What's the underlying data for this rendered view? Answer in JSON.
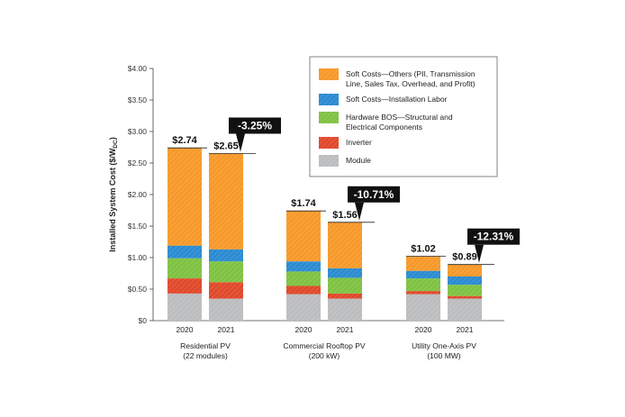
{
  "chart_data": {
    "type": "bar",
    "stacked": true,
    "ylabel": "Installed System Cost ($/W",
    "ylabel_subscript": "DC",
    "ylabel_suffix": ")",
    "ylim": [
      0,
      4.0
    ],
    "yticks": [
      "$0",
      "$0.50",
      "$1.00",
      "$1.50",
      "$2.00",
      "$2.50",
      "$3.00",
      "$3.50",
      "$4.00"
    ],
    "ytick_values": [
      0,
      0.5,
      1.0,
      1.5,
      2.0,
      2.5,
      3.0,
      3.5,
      4.0
    ],
    "grid": false,
    "legend_position": "top-right",
    "groups": [
      {
        "label_line1": "Residential PV",
        "label_line2": "(22 modules)",
        "change_label": "-3.25%",
        "bars": [
          {
            "year": "2020",
            "total": 2.74,
            "total_label": "$2.74",
            "segments": [
              0.43,
              0.24,
              0.32,
              0.2,
              1.55
            ]
          },
          {
            "year": "2021",
            "total": 2.65,
            "total_label": "$2.65",
            "segments": [
              0.35,
              0.26,
              0.33,
              0.19,
              1.52
            ]
          }
        ]
      },
      {
        "label_line1": "Commercial Rooftop PV",
        "label_line2": "(200 kW)",
        "change_label": "-10.71%",
        "bars": [
          {
            "year": "2020",
            "total": 1.74,
            "total_label": "$1.74",
            "segments": [
              0.42,
              0.13,
              0.23,
              0.16,
              0.8
            ]
          },
          {
            "year": "2021",
            "total": 1.56,
            "total_label": "$1.56",
            "segments": [
              0.35,
              0.08,
              0.25,
              0.15,
              0.73
            ]
          }
        ]
      },
      {
        "label_line1": "Utility One-Axis PV",
        "label_line2": "(100 MW)",
        "change_label": "-12.31%",
        "bars": [
          {
            "year": "2020",
            "total": 1.02,
            "total_label": "$1.02",
            "segments": [
              0.42,
              0.05,
              0.2,
              0.12,
              0.23
            ]
          },
          {
            "year": "2021",
            "total": 0.89,
            "total_label": "$0.89",
            "segments": [
              0.35,
              0.04,
              0.18,
              0.13,
              0.19
            ]
          }
        ]
      }
    ],
    "series": [
      {
        "name": "Module",
        "color": "#bcbdbf"
      },
      {
        "name": "Inverter",
        "color": "#e0492b"
      },
      {
        "name": "Hardware BOS—Structural and Electrical Components",
        "color": "#7fc242"
      },
      {
        "name": "Soft Costs—Installation Labor",
        "color": "#2b8bd1"
      },
      {
        "name": "Soft Costs—Others (PII, Transmission Line, Sales Tax, Overhead, and Profit)",
        "color": "#f7992a"
      }
    ],
    "legend": [
      {
        "lines": [
          "Soft Costs—Others (PII, Transmission",
          "Line, Sales Tax, Overhead, and Profit)"
        ],
        "color": "#f7992a"
      },
      {
        "lines": [
          "Soft Costs—Installation Labor"
        ],
        "color": "#2b8bd1"
      },
      {
        "lines": [
          "Hardware BOS—Structural and",
          "Electrical Components"
        ],
        "color": "#7fc242"
      },
      {
        "lines": [
          "Inverter"
        ],
        "color": "#e0492b"
      },
      {
        "lines": [
          "Module"
        ],
        "color": "#bcbdbf"
      }
    ],
    "badge_color": "#111111"
  }
}
